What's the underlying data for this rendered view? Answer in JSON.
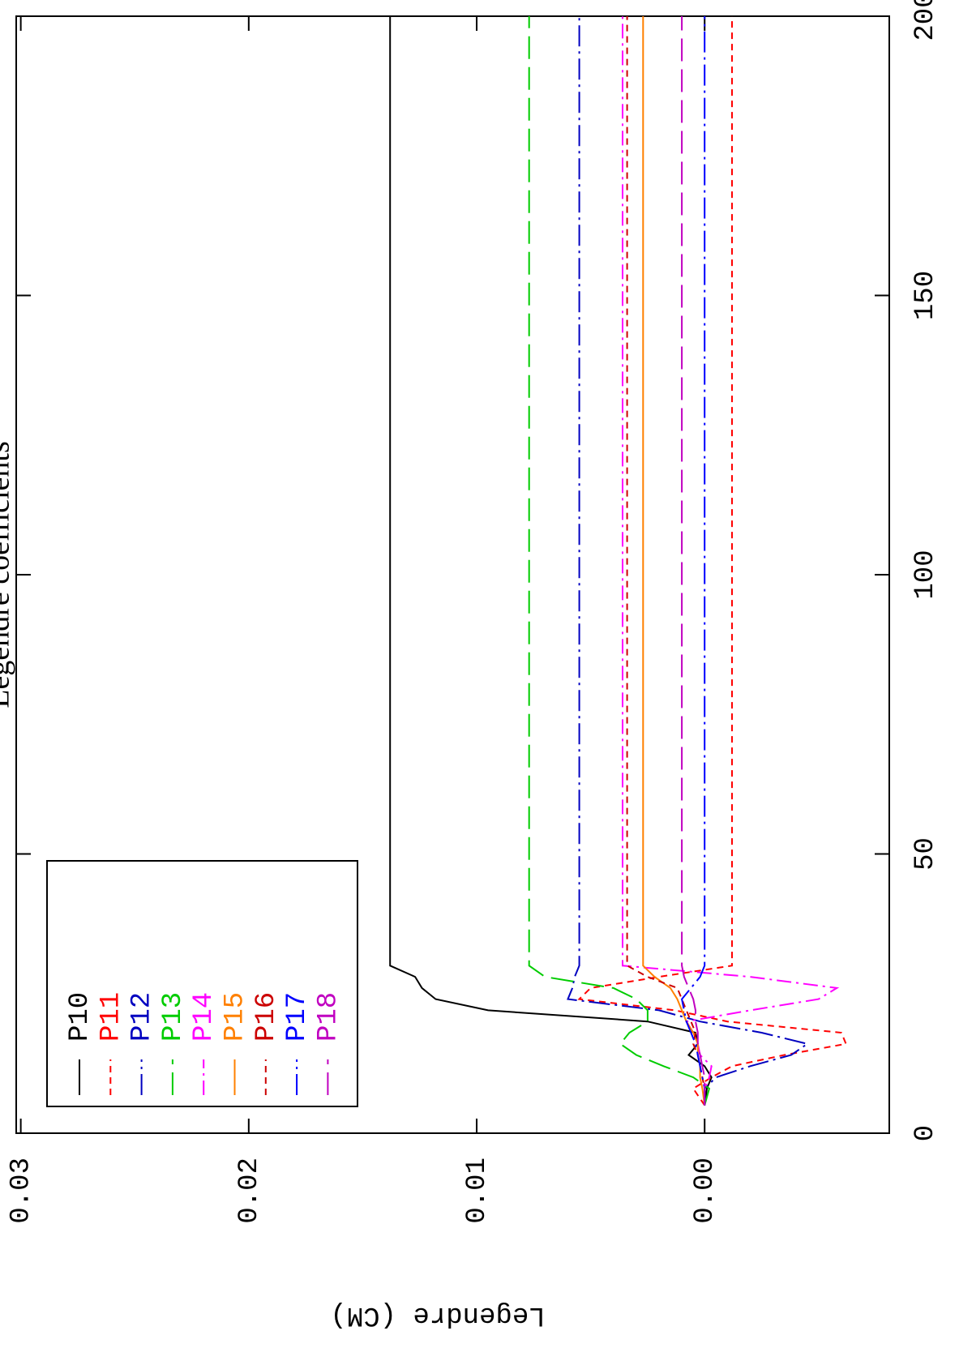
{
  "chart_data": {
    "type": "line",
    "title": "Legendre coefficients",
    "y_label": "Legendre (CM)",
    "x": [
      5,
      8,
      10,
      12,
      14,
      16,
      18,
      20,
      22,
      24,
      26,
      28,
      30,
      200
    ],
    "xlim": [
      0,
      200
    ],
    "xticks": [
      0,
      50,
      100,
      150,
      200
    ],
    "ylim": [
      -0.0081,
      0.0302
    ],
    "yticks": [
      {
        "value": 0,
        "label": "0.00"
      },
      0.01,
      0.02,
      0.03
    ],
    "legend": "upper left",
    "series": [
      {
        "name": "P10",
        "color": "#000000",
        "dash": "none",
        "values": [
          0,
          -0.0001,
          -0.0003,
          0,
          0.0007,
          0.0003,
          0.0004,
          0.0025,
          0.0095,
          0.0118,
          0.0124,
          0.0127,
          0.0138,
          0.0138
        ]
      },
      {
        "name": "P11",
        "color": "#ff0000",
        "dash": "8 6",
        "values": [
          0,
          0.0005,
          -0.0003,
          -0.0012,
          -0.0035,
          -0.0062,
          -0.006,
          -0.001,
          0.0013,
          0.0055,
          0.005,
          0.002,
          -0.0012,
          -0.0012
        ]
      },
      {
        "name": "P12",
        "color": "#0000c0",
        "dash": "26 6 3 6",
        "values": [
          0,
          0,
          -0.0005,
          -0.002,
          -0.0038,
          -0.0045,
          -0.0025,
          0.0002,
          0.002,
          0.006,
          0.0058,
          0.0057,
          0.0055,
          0.0055
        ]
      },
      {
        "name": "P13",
        "color": "#00cc00",
        "dash": "28 10",
        "values": [
          0,
          -0.0002,
          0.0005,
          0.0018,
          0.003,
          0.0037,
          0.0033,
          0.0025,
          0.0025,
          0.003,
          0.004,
          0.007,
          0.0077,
          0.0077
        ]
      },
      {
        "name": "P14",
        "color": "#ff00ff",
        "dash": "18 6 3 6",
        "values": [
          0,
          0,
          -0.0002,
          -0.0003,
          0.0002,
          0.0003,
          0.0005,
          0.0008,
          -0.002,
          -0.005,
          -0.0058,
          -0.002,
          0.0036,
          0.0036
        ]
      },
      {
        "name": "P15",
        "color": "#ff8000",
        "dash": "none",
        "values": [
          0,
          0.0001,
          0.0002,
          0.0002,
          0.0003,
          0.0003,
          0.0005,
          0.0008,
          0.001,
          0.0012,
          0.0015,
          0.0022,
          0.0027,
          0.0027
        ]
      },
      {
        "name": "P16",
        "color": "#cc0000",
        "dash": "8 6",
        "values": [
          0,
          0,
          0.0001,
          0.0002,
          0.0003,
          0.0005,
          0.0004,
          0.0006,
          0.0008,
          0.001,
          0.0012,
          0.0025,
          0.0034,
          0.0034
        ]
      },
      {
        "name": "P17",
        "color": "#0000ff",
        "dash": "26 6 3 6",
        "values": [
          0,
          0,
          0.0001,
          0.0002,
          0.0003,
          0.0004,
          0.0006,
          0.0008,
          0.0009,
          0.001,
          0.0006,
          0.0002,
          0,
          0
        ]
      },
      {
        "name": "P18",
        "color": "#c000c0",
        "dash": "28 10",
        "values": [
          0,
          0,
          0,
          0.0001,
          0.0002,
          0.0003,
          0.0003,
          0.0004,
          0.0004,
          0.0005,
          0.0007,
          0.0009,
          0.001,
          0.001
        ]
      }
    ]
  }
}
